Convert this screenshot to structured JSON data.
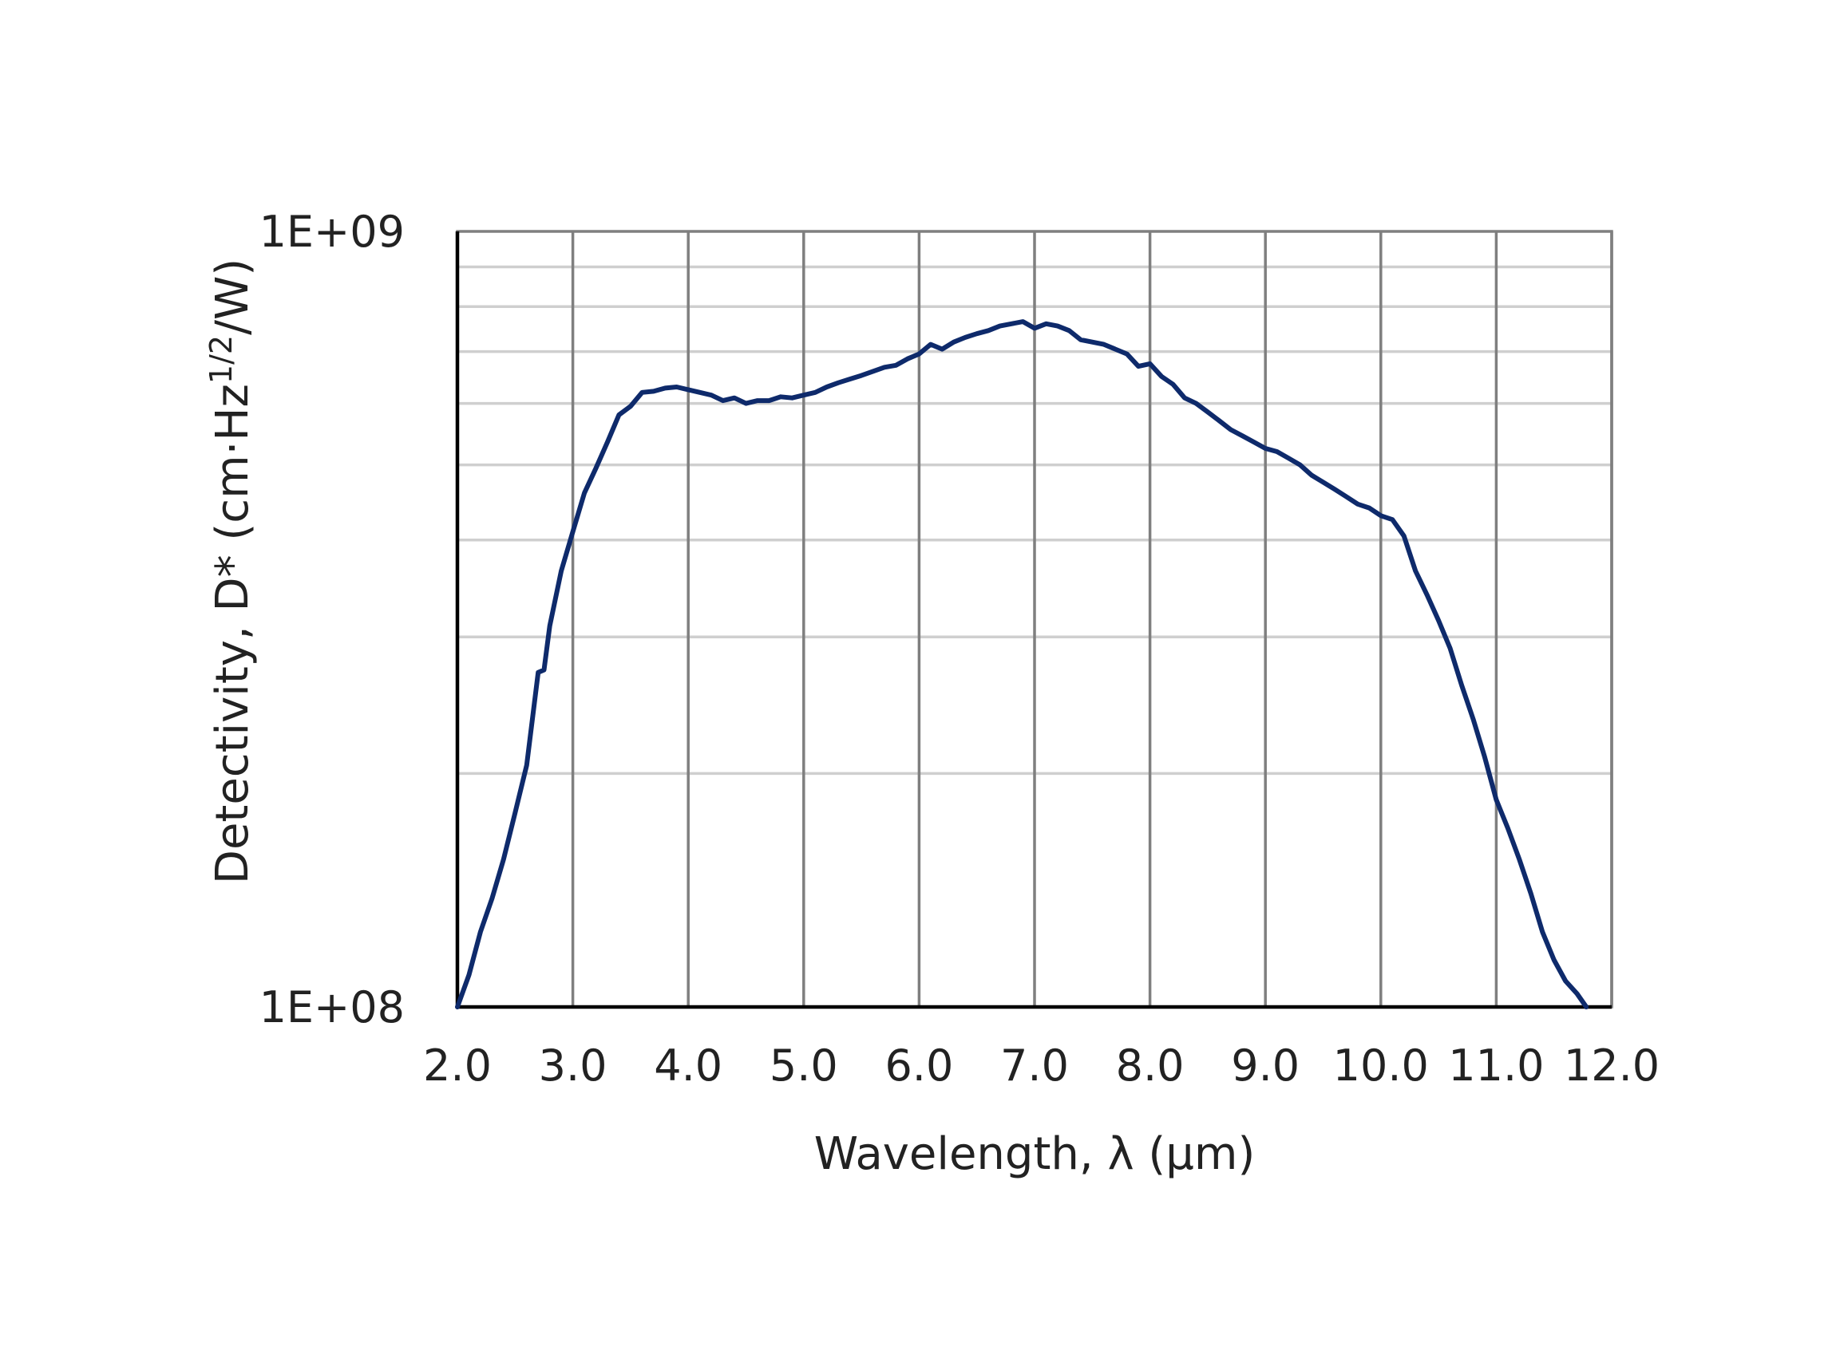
{
  "chart_data": {
    "type": "line",
    "xlabel": "Wavelength, λ (μm)",
    "ylabel_main": "Detectivity, D* (cm·Hz",
    "ylabel_sup": "1/2",
    "ylabel_tail": "/W)",
    "xlim": [
      2.0,
      12.0
    ],
    "ylim": [
      100000000.0,
      1000000000.0
    ],
    "y_scale": "log",
    "x_ticks": [
      "2.0",
      "3.0",
      "4.0",
      "5.0",
      "6.0",
      "7.0",
      "8.0",
      "9.0",
      "10.0",
      "11.0",
      "12.0"
    ],
    "y_ticks": [
      {
        "value": 100000000.0,
        "label": "1E+08"
      },
      {
        "value": 1000000000.0,
        "label": "1E+09"
      }
    ],
    "grid": true,
    "line_color": "#0e2a6b",
    "series": [
      {
        "x": [
          2.0,
          2.1,
          2.2,
          2.3,
          2.4,
          2.5,
          2.6,
          2.7,
          2.75,
          2.8,
          2.9,
          3.0,
          3.1,
          3.2,
          3.3,
          3.4,
          3.5,
          3.6,
          3.7,
          3.8,
          3.9,
          4.0,
          4.1,
          4.2,
          4.3,
          4.4,
          4.5,
          4.6,
          4.7,
          4.8,
          4.9,
          5.0,
          5.1,
          5.2,
          5.3,
          5.4,
          5.5,
          5.6,
          5.7,
          5.8,
          5.9,
          6.0,
          6.1,
          6.2,
          6.3,
          6.4,
          6.5,
          6.6,
          6.7,
          6.8,
          6.9,
          7.0,
          7.1,
          7.2,
          7.3,
          7.4,
          7.5,
          7.6,
          7.7,
          7.8,
          7.9,
          8.0,
          8.1,
          8.2,
          8.3,
          8.4,
          8.5,
          8.6,
          8.7,
          8.8,
          8.9,
          9.0,
          9.1,
          9.2,
          9.3,
          9.4,
          9.5,
          9.6,
          9.7,
          9.8,
          9.9,
          10.0,
          10.1,
          10.2,
          10.3,
          10.4,
          10.5,
          10.6,
          10.7,
          10.8,
          10.9,
          11.0,
          11.1,
          11.2,
          11.3,
          11.4,
          11.5,
          11.6,
          11.7,
          11.78
        ],
        "y": [
          100000000.0,
          110000000.0,
          125000000.0,
          138000000.0,
          155000000.0,
          178000000.0,
          205000000.0,
          270000000.0,
          272000000.0,
          310000000.0,
          365000000.0,
          410000000.0,
          460000000.0,
          495000000.0,
          535000000.0,
          580000000.0,
          595000000.0,
          620000000.0,
          622000000.0,
          628000000.0,
          630000000.0,
          625000000.0,
          620000000.0,
          615000000.0,
          605000000.0,
          610000000.0,
          600000000.0,
          605000000.0,
          605000000.0,
          612000000.0,
          610000000.0,
          615000000.0,
          620000000.0,
          630000000.0,
          638000000.0,
          645000000.0,
          652000000.0,
          660000000.0,
          668000000.0,
          672000000.0,
          685000000.0,
          695000000.0,
          715000000.0,
          705000000.0,
          720000000.0,
          730000000.0,
          738000000.0,
          745000000.0,
          755000000.0,
          760000000.0,
          765000000.0,
          750000000.0,
          760000000.0,
          755000000.0,
          745000000.0,
          725000000.0,
          720000000.0,
          715000000.0,
          705000000.0,
          695000000.0,
          670000000.0,
          675000000.0,
          650000000.0,
          635000000.0,
          610000000.0,
          600000000.0,
          585000000.0,
          570000000.0,
          555000000.0,
          545000000.0,
          535000000.0,
          525000000.0,
          520000000.0,
          510000000.0,
          500000000.0,
          485000000.0,
          475000000.0,
          465000000.0,
          455000000.0,
          445000000.0,
          440000000.0,
          430000000.0,
          425000000.0,
          405000000.0,
          365000000.0,
          340000000.0,
          315000000.0,
          290000000.0,
          260000000.0,
          235000000.0,
          210000000.0,
          185000000.0,
          170000000.0,
          155000000.0,
          140000000.0,
          125000000.0,
          115000000.0,
          108000000.0,
          104000000.0,
          100000000.0
        ]
      }
    ]
  }
}
